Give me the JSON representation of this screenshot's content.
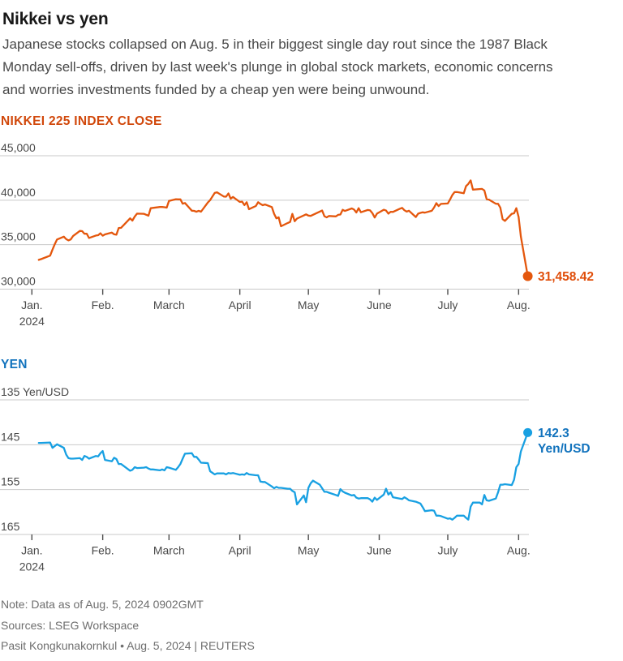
{
  "page": {
    "title": "Nikkei vs yen",
    "subtitle": "Japanese stocks collapsed on Aug. 5 in their biggest single day rout since the 1987 Black Monday sell-offs, driven by last week's plunge in global stock markets, economic concerns and worries investments funded by a cheap yen were being unwound.",
    "subtitle_lines": [
      "Japanese stocks collapsed on Aug. 5 in their biggest single day rout since the 1987 Black",
      "Monday sell-offs, driven by last week's plunge in global stock markets, economic concerns",
      "and worries investments funded by a cheap yen were being unwound."
    ]
  },
  "styles": {
    "grid_color": "#c9c9c9",
    "axis_text_color": "#4a4a4a",
    "tick_color": "#4d4d4d"
  },
  "footer": {
    "note": "Note: Data as of Aug. 5, 2024 0902GMT",
    "sources": "Sources: LSEG Workspace",
    "byline": "Pasit Kongkunakornkul • Aug. 5, 2024 | REUTERS"
  },
  "chart_data": [
    {
      "id": "nikkei",
      "type": "line",
      "title": "NIKKEI 225 INDEX CLOSE",
      "title_color": "#d1480b",
      "color": "#e4570d",
      "value_color": "#e04e0a",
      "end_value": 31458.42,
      "end_label_lines": [
        "31,458.42"
      ],
      "grid": true,
      "legend": "none",
      "y_axis": {
        "range": [
          45000,
          30000
        ],
        "inverted": false,
        "ticks": [
          {
            "value": 45000,
            "label": "45,000"
          },
          {
            "value": 40000,
            "label": "40,000"
          },
          {
            "value": 35000,
            "label": "35,000"
          },
          {
            "value": 30000,
            "label": "30,000"
          }
        ]
      },
      "x_axis": {
        "unit": "days since Jan 1, 2024",
        "range_days": [
          0,
          217
        ],
        "ticks": [
          {
            "day": 0,
            "label": "Jan.",
            "sublabel": "2024"
          },
          {
            "day": 31,
            "label": "Feb."
          },
          {
            "day": 60,
            "label": "March"
          },
          {
            "day": 91,
            "label": "April"
          },
          {
            "day": 121,
            "label": "May"
          },
          {
            "day": 152,
            "label": "June"
          },
          {
            "day": 182,
            "label": "July"
          },
          {
            "day": 213,
            "label": "Aug."
          }
        ]
      },
      "series": [
        [
          3,
          33288
        ],
        [
          4,
          33377
        ],
        [
          8,
          33763
        ],
        [
          9,
          34441
        ],
        [
          10,
          35049
        ],
        [
          11,
          35577
        ],
        [
          14,
          35901
        ],
        [
          15,
          35619
        ],
        [
          16,
          35477
        ],
        [
          17,
          35591
        ],
        [
          18,
          35963
        ],
        [
          21,
          36546
        ],
        [
          22,
          36517
        ],
        [
          23,
          36226
        ],
        [
          24,
          36236
        ],
        [
          25,
          35751
        ],
        [
          28,
          36026
        ],
        [
          29,
          36065
        ],
        [
          30,
          36286
        ],
        [
          31,
          36011
        ],
        [
          32,
          36158
        ],
        [
          35,
          36354
        ],
        [
          36,
          36160
        ],
        [
          37,
          36119
        ],
        [
          38,
          36863
        ],
        [
          39,
          36897
        ],
        [
          43,
          37963
        ],
        [
          44,
          37703
        ],
        [
          45,
          38157
        ],
        [
          46,
          38487
        ],
        [
          49,
          38470
        ],
        [
          50,
          38363
        ],
        [
          51,
          38262
        ],
        [
          52,
          39098
        ],
        [
          56,
          39233
        ],
        [
          57,
          39239
        ],
        [
          58,
          39208
        ],
        [
          59,
          39166
        ],
        [
          60,
          39910
        ],
        [
          63,
          40109
        ],
        [
          64,
          40097
        ],
        [
          65,
          40090
        ],
        [
          66,
          39598
        ],
        [
          67,
          39688
        ],
        [
          70,
          38820
        ],
        [
          71,
          38797
        ],
        [
          72,
          38695
        ],
        [
          73,
          38808
        ],
        [
          74,
          38708
        ],
        [
          77,
          39740
        ],
        [
          78,
          40003
        ],
        [
          80,
          40815
        ],
        [
          81,
          40888
        ],
        [
          84,
          40414
        ],
        [
          85,
          40398
        ],
        [
          86,
          40762
        ],
        [
          87,
          40168
        ],
        [
          88,
          40369
        ],
        [
          91,
          39803
        ],
        [
          92,
          39839
        ],
        [
          93,
          39451
        ],
        [
          94,
          39773
        ],
        [
          95,
          38992
        ],
        [
          98,
          39347
        ],
        [
          99,
          39773
        ],
        [
          100,
          39581
        ],
        [
          101,
          39442
        ],
        [
          102,
          39524
        ],
        [
          105,
          39232
        ],
        [
          106,
          38471
        ],
        [
          107,
          37961
        ],
        [
          108,
          38079
        ],
        [
          109,
          37068
        ],
        [
          112,
          37438
        ],
        [
          113,
          37552
        ],
        [
          114,
          38460
        ],
        [
          115,
          37628
        ],
        [
          116,
          37934
        ],
        [
          120,
          38405
        ],
        [
          121,
          38274
        ],
        [
          122,
          38236
        ],
        [
          127,
          38835
        ],
        [
          128,
          38202
        ],
        [
          129,
          38074
        ],
        [
          130,
          38229
        ],
        [
          133,
          38179
        ],
        [
          134,
          38356
        ],
        [
          135,
          38385
        ],
        [
          136,
          38920
        ],
        [
          137,
          38787
        ],
        [
          140,
          39069
        ],
        [
          141,
          38947
        ],
        [
          142,
          38617
        ],
        [
          143,
          39103
        ],
        [
          144,
          38646
        ],
        [
          147,
          38900
        ],
        [
          148,
          38855
        ],
        [
          149,
          38557
        ],
        [
          150,
          38054
        ],
        [
          151,
          38487
        ],
        [
          154,
          38923
        ],
        [
          155,
          38837
        ],
        [
          156,
          38490
        ],
        [
          157,
          38703
        ],
        [
          158,
          38683
        ],
        [
          161,
          39038
        ],
        [
          162,
          39134
        ],
        [
          163,
          38876
        ],
        [
          164,
          38720
        ],
        [
          165,
          38814
        ],
        [
          168,
          38102
        ],
        [
          169,
          38482
        ],
        [
          170,
          38570
        ],
        [
          171,
          38633
        ],
        [
          172,
          38596
        ],
        [
          175,
          38804
        ],
        [
          176,
          39173
        ],
        [
          177,
          39667
        ],
        [
          178,
          39341
        ],
        [
          179,
          39583
        ],
        [
          182,
          39631
        ],
        [
          183,
          40074
        ],
        [
          184,
          40581
        ],
        [
          185,
          40913
        ],
        [
          186,
          40912
        ],
        [
          189,
          40781
        ],
        [
          190,
          41580
        ],
        [
          191,
          41831
        ],
        [
          192,
          42224
        ],
        [
          193,
          41190
        ],
        [
          197,
          41275
        ],
        [
          198,
          41097
        ],
        [
          199,
          40126
        ],
        [
          200,
          40063
        ],
        [
          203,
          39599
        ],
        [
          204,
          39595
        ],
        [
          205,
          39155
        ],
        [
          206,
          37870
        ],
        [
          207,
          37667
        ],
        [
          210,
          38468
        ],
        [
          211,
          38526
        ],
        [
          212,
          39101
        ],
        [
          213,
          38126
        ],
        [
          214,
          35909
        ],
        [
          217,
          31458.42
        ]
      ]
    },
    {
      "id": "yen",
      "type": "line",
      "title": "YEN",
      "title_color": "#1273bd",
      "color": "#18a0e2",
      "value_color": "#1273bd",
      "end_value": 142.3,
      "end_label_lines": [
        "142.3",
        "Yen/USD"
      ],
      "grid": true,
      "legend": "none",
      "y_axis": {
        "range": [
          135,
          165
        ],
        "inverted": true,
        "unit": "Yen/USD",
        "ticks": [
          {
            "value": 135,
            "label": "135 Yen/USD"
          },
          {
            "value": 145,
            "label": "145"
          },
          {
            "value": 155,
            "label": "155"
          },
          {
            "value": 165,
            "label": "165"
          }
        ]
      },
      "x_axis": {
        "unit": "days since Jan 1, 2024",
        "range_days": [
          0,
          217
        ],
        "ticks": [
          {
            "day": 0,
            "label": "Jan.",
            "sublabel": "2024"
          },
          {
            "day": 31,
            "label": "Feb."
          },
          {
            "day": 60,
            "label": "March"
          },
          {
            "day": 91,
            "label": "April"
          },
          {
            "day": 121,
            "label": "May"
          },
          {
            "day": 152,
            "label": "June"
          },
          {
            "day": 182,
            "label": "July"
          },
          {
            "day": 213,
            "label": "Aug."
          }
        ]
      },
      "series": [
        [
          3,
          144.6
        ],
        [
          4,
          144.6
        ],
        [
          8,
          144.5
        ],
        [
          9,
          145.7
        ],
        [
          10,
          145.3
        ],
        [
          11,
          144.9
        ],
        [
          14,
          145.7
        ],
        [
          15,
          147.2
        ],
        [
          16,
          148.0
        ],
        [
          17,
          148.1
        ],
        [
          18,
          148.1
        ],
        [
          21,
          148.0
        ],
        [
          22,
          148.4
        ],
        [
          23,
          147.5
        ],
        [
          24,
          147.7
        ],
        [
          25,
          148.1
        ],
        [
          28,
          147.5
        ],
        [
          29,
          147.6
        ],
        [
          30,
          146.9
        ],
        [
          31,
          146.4
        ],
        [
          32,
          148.4
        ],
        [
          35,
          148.7
        ],
        [
          36,
          147.9
        ],
        [
          37,
          148.2
        ],
        [
          38,
          149.3
        ],
        [
          39,
          149.3
        ],
        [
          43,
          150.8
        ],
        [
          44,
          150.6
        ],
        [
          45,
          150.0
        ],
        [
          46,
          150.2
        ],
        [
          49,
          150.1
        ],
        [
          50,
          150.0
        ],
        [
          51,
          150.3
        ],
        [
          52,
          150.5
        ],
        [
          53,
          150.5
        ],
        [
          56,
          150.7
        ],
        [
          57,
          150.5
        ],
        [
          58,
          150.7
        ],
        [
          59,
          150.0
        ],
        [
          60,
          150.1
        ],
        [
          63,
          150.6
        ],
        [
          64,
          150.0
        ],
        [
          65,
          149.3
        ],
        [
          66,
          148.1
        ],
        [
          67,
          147.0
        ],
        [
          70,
          146.9
        ],
        [
          71,
          147.7
        ],
        [
          72,
          147.7
        ],
        [
          73,
          148.3
        ],
        [
          74,
          149.0
        ],
        [
          77,
          149.1
        ],
        [
          78,
          150.9
        ],
        [
          80,
          151.6
        ],
        [
          81,
          151.4
        ],
        [
          84,
          151.4
        ],
        [
          85,
          151.6
        ],
        [
          86,
          151.3
        ],
        [
          87,
          151.4
        ],
        [
          88,
          151.3
        ],
        [
          91,
          151.7
        ],
        [
          92,
          151.6
        ],
        [
          93,
          151.7
        ],
        [
          94,
          151.3
        ],
        [
          95,
          151.6
        ],
        [
          98,
          151.8
        ],
        [
          99,
          151.8
        ],
        [
          100,
          153.2
        ],
        [
          101,
          153.3
        ],
        [
          102,
          153.3
        ],
        [
          105,
          154.3
        ],
        [
          106,
          154.7
        ],
        [
          107,
          154.4
        ],
        [
          108,
          154.6
        ],
        [
          109,
          154.6
        ],
        [
          112,
          154.8
        ],
        [
          113,
          154.8
        ],
        [
          114,
          155.3
        ],
        [
          115,
          155.6
        ],
        [
          116,
          158.3
        ],
        [
          119,
          156.3
        ],
        [
          120,
          157.8
        ],
        [
          121,
          154.6
        ],
        [
          122,
          153.6
        ],
        [
          123,
          153.0
        ],
        [
          126,
          153.9
        ],
        [
          127,
          154.7
        ],
        [
          128,
          155.5
        ],
        [
          129,
          155.5
        ],
        [
          130,
          155.7
        ],
        [
          133,
          156.2
        ],
        [
          134,
          156.4
        ],
        [
          135,
          154.9
        ],
        [
          136,
          155.4
        ],
        [
          137,
          155.7
        ],
        [
          140,
          156.3
        ],
        [
          141,
          156.2
        ],
        [
          142,
          156.8
        ],
        [
          143,
          157.0
        ],
        [
          144,
          156.9
        ],
        [
          147,
          156.9
        ],
        [
          148,
          157.2
        ],
        [
          149,
          157.7
        ],
        [
          150,
          156.8
        ],
        [
          151,
          157.3
        ],
        [
          154,
          156.1
        ],
        [
          155,
          154.8
        ],
        [
          156,
          156.1
        ],
        [
          157,
          155.6
        ],
        [
          158,
          156.7
        ],
        [
          161,
          157.0
        ],
        [
          162,
          157.1
        ],
        [
          163,
          156.7
        ],
        [
          164,
          157.0
        ],
        [
          165,
          157.4
        ],
        [
          168,
          157.7
        ],
        [
          169,
          157.9
        ],
        [
          170,
          158.1
        ],
        [
          171,
          158.9
        ],
        [
          172,
          159.8
        ],
        [
          175,
          159.6
        ],
        [
          176,
          159.7
        ],
        [
          177,
          160.8
        ],
        [
          178,
          160.8
        ],
        [
          179,
          160.9
        ],
        [
          182,
          161.5
        ],
        [
          183,
          161.4
        ],
        [
          184,
          161.7
        ],
        [
          185,
          161.3
        ],
        [
          186,
          160.8
        ],
        [
          189,
          160.8
        ],
        [
          190,
          161.3
        ],
        [
          191,
          161.7
        ],
        [
          192,
          158.8
        ],
        [
          193,
          157.9
        ],
        [
          196,
          157.9
        ],
        [
          197,
          158.3
        ],
        [
          198,
          156.2
        ],
        [
          199,
          157.4
        ],
        [
          200,
          157.5
        ],
        [
          203,
          157.0
        ],
        [
          204,
          155.6
        ],
        [
          205,
          153.9
        ],
        [
          206,
          153.9
        ],
        [
          207,
          153.8
        ],
        [
          210,
          154.0
        ],
        [
          211,
          152.8
        ],
        [
          212,
          150.0
        ],
        [
          213,
          149.3
        ],
        [
          214,
          146.5
        ],
        [
          217,
          142.3
        ]
      ]
    }
  ]
}
